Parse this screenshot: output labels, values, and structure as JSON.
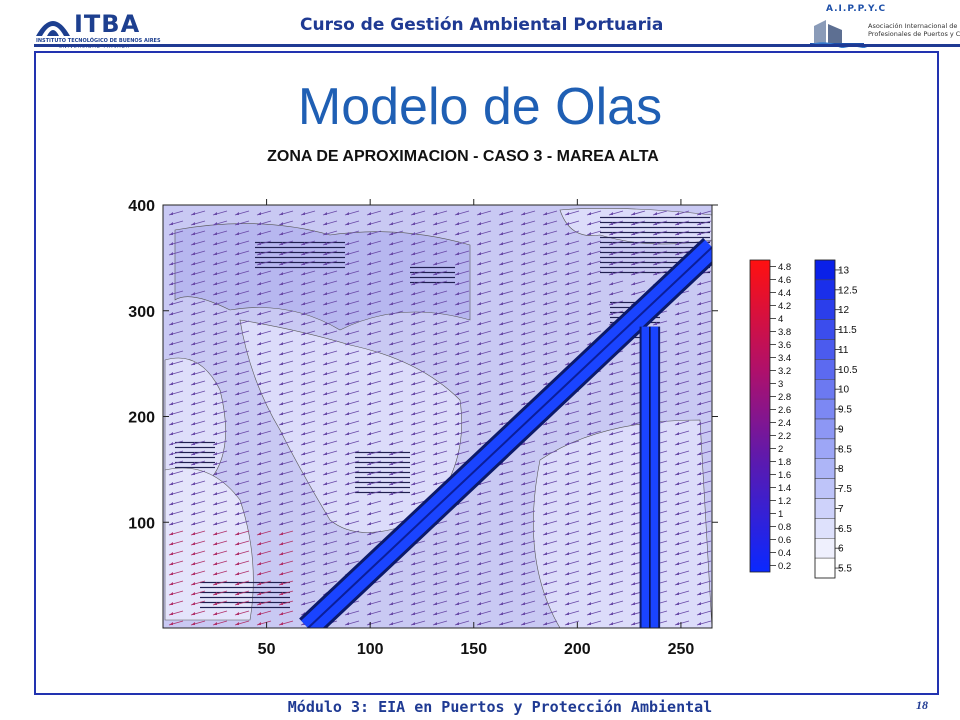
{
  "header": {
    "logo_left": {
      "name": "ITBA",
      "subtitle": "INSTITUTO TECNOLÓGICO DE BUENOS AIRES",
      "tagline": "· UNIVERSIDAD PRIVADA ·"
    },
    "course_title": "Curso de Gestión Ambiental Portuaria",
    "logo_right": {
      "letters": "A.I.P.P.Y.C",
      "text_lines": [
        "Asociación Internacional de",
        "Profesionales de Puertos y Costas"
      ]
    }
  },
  "slide": {
    "title": "Modelo de Olas"
  },
  "chart_data": {
    "type": "heatmap",
    "title": "ZONA DE APROXIMACION  - CASO 3 - MAREA ALTA",
    "xlabel": "",
    "ylabel": "",
    "x_ticks": [
      50,
      100,
      150,
      200,
      250
    ],
    "y_ticks": [
      100,
      200,
      300,
      400
    ],
    "xlim": [
      0,
      265
    ],
    "ylim": [
      0,
      400
    ],
    "features": [
      {
        "kind": "breakwater",
        "from": [
          70,
          0
        ],
        "to": [
          265,
          360
        ]
      },
      {
        "kind": "pier",
        "x": [
          231,
          239
        ],
        "y": [
          0,
          285
        ]
      }
    ],
    "colorbar_height": {
      "ticks": [
        4.8,
        4.6,
        4.4,
        4.2,
        4,
        3.8,
        3.6,
        3.4,
        3.2,
        3,
        2.8,
        2.6,
        2.4,
        2.2,
        2,
        1.8,
        1.6,
        1.4,
        1.2,
        1,
        0.8,
        0.6,
        0.4,
        0.2
      ],
      "color_top": "#ff1010",
      "color_bottom": "#0a28ff"
    },
    "colorbar_period": {
      "ticks": [
        13,
        12.5,
        12,
        11.5,
        11,
        10.5,
        10,
        9.5,
        9,
        8.5,
        8,
        7.5,
        7,
        6.5,
        6,
        5.5
      ],
      "color_top": "#0a20e8",
      "color_bottom": "#ffffff"
    }
  },
  "footer": {
    "module": "Módulo 3: EIA en Puertos y Protección Ambiental",
    "page": "18"
  }
}
